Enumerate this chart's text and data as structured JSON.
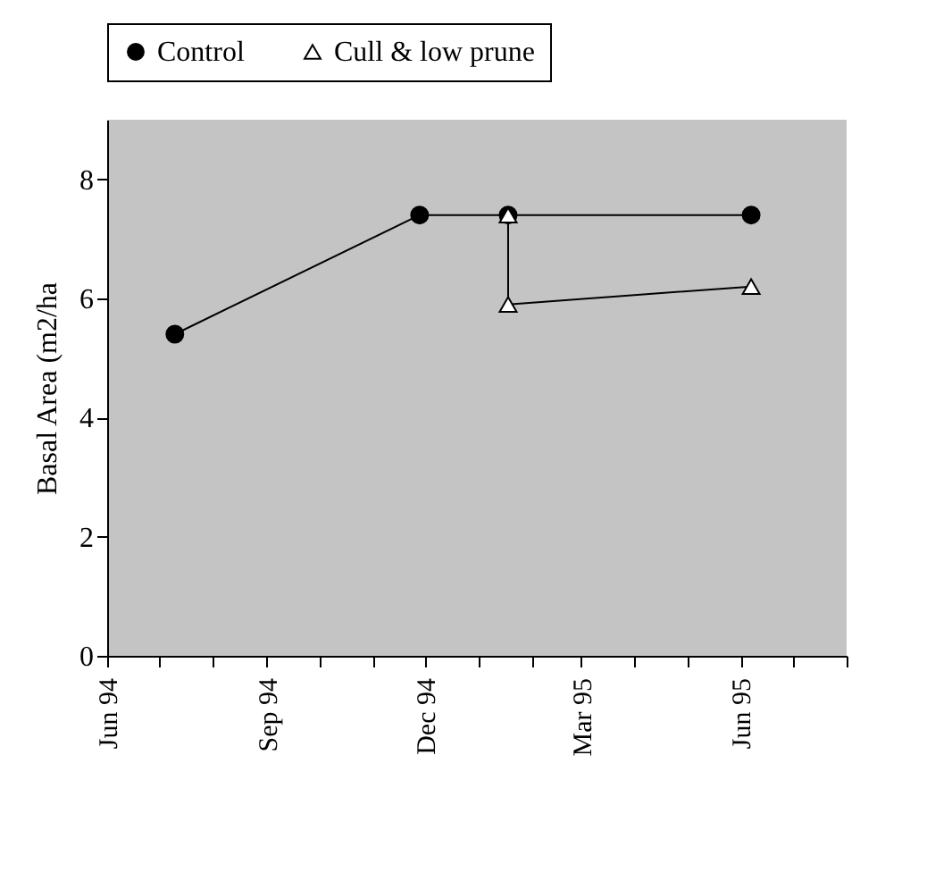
{
  "chart_data": {
    "type": "line",
    "ylabel": "Basal Area (m2/ha",
    "series": [
      {
        "name": "Control",
        "color": "#000000",
        "marker": "circle",
        "x": [
          "1994-07-10",
          "1994-11-28",
          "1995-01-18",
          "1995-06-07"
        ],
        "values": [
          5.4,
          7.4,
          7.4,
          7.4
        ]
      },
      {
        "name": "Cull & low prune",
        "color": "#000000",
        "marker": "triangle",
        "x": [
          "1995-01-18",
          "1995-01-18",
          "1995-06-07"
        ],
        "values": [
          7.4,
          5.9,
          6.2
        ]
      }
    ],
    "xlim": [
      "1994-06",
      "1995-08"
    ],
    "xticks": [
      {
        "value": "1994-06",
        "label": "Jun 94"
      },
      {
        "value": "1994-07",
        "label": null
      },
      {
        "value": "1994-08",
        "label": null
      },
      {
        "value": "1994-09",
        "label": "Sep 94"
      },
      {
        "value": "1994-10",
        "label": null
      },
      {
        "value": "1994-11",
        "label": null
      },
      {
        "value": "1994-12",
        "label": "Dec 94"
      },
      {
        "value": "1995-01",
        "label": null
      },
      {
        "value": "1995-02",
        "label": null
      },
      {
        "value": "1995-03",
        "label": "Mar 95"
      },
      {
        "value": "1995-04",
        "label": null
      },
      {
        "value": "1995-05",
        "label": null
      },
      {
        "value": "1995-06",
        "label": "Jun 95"
      },
      {
        "value": "1995-07",
        "label": null
      },
      {
        "value": "1995-08",
        "label": null
      }
    ],
    "ylim": [
      0,
      9
    ],
    "yticks": [
      0,
      2,
      4,
      6,
      8
    ],
    "legend": "top",
    "grid": false,
    "line_style": "solid"
  }
}
